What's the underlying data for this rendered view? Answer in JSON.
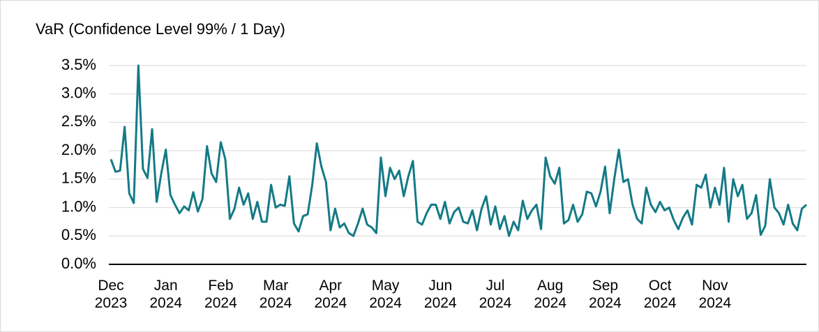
{
  "chart_data": {
    "type": "line",
    "title": "VaR (Confidence Level 99% / 1 Day)",
    "categories": [
      "Dec 2023",
      null,
      null,
      null,
      null,
      null,
      null,
      null,
      null,
      null,
      null,
      null,
      "Jan 2024",
      null,
      null,
      null,
      null,
      null,
      null,
      null,
      null,
      null,
      null,
      null,
      "Feb 2024",
      null,
      null,
      null,
      null,
      null,
      null,
      null,
      null,
      null,
      null,
      null,
      "Mar 2024",
      null,
      null,
      null,
      null,
      null,
      null,
      null,
      null,
      null,
      null,
      null,
      "Apr 2024",
      null,
      null,
      null,
      null,
      null,
      null,
      null,
      null,
      null,
      null,
      null,
      "May 2024",
      null,
      null,
      null,
      null,
      null,
      null,
      null,
      null,
      null,
      null,
      null,
      "Jun 2024",
      null,
      null,
      null,
      null,
      null,
      null,
      null,
      null,
      null,
      null,
      null,
      "Jul 2024",
      null,
      null,
      null,
      null,
      null,
      null,
      null,
      null,
      null,
      null,
      null,
      "Aug 2024",
      null,
      null,
      null,
      null,
      null,
      null,
      null,
      null,
      null,
      null,
      null,
      "Sep 2024",
      null,
      null,
      null,
      null,
      null,
      null,
      null,
      null,
      null,
      null,
      null,
      "Oct 2024",
      null,
      null,
      null,
      null,
      null,
      null,
      null,
      null,
      null,
      null,
      null,
      "Nov 2024",
      null,
      null,
      null,
      null,
      null,
      null,
      null,
      null,
      null,
      null,
      null,
      null,
      null,
      null,
      null,
      null,
      null,
      null,
      null,
      null
    ],
    "values": [
      1.85,
      1.63,
      1.65,
      2.42,
      1.25,
      1.08,
      3.5,
      1.68,
      1.52,
      2.38,
      1.1,
      1.6,
      2.02,
      1.22,
      1.05,
      0.9,
      1.02,
      0.95,
      1.27,
      0.93,
      1.15,
      2.08,
      1.6,
      1.45,
      2.15,
      1.85,
      0.8,
      0.98,
      1.35,
      1.05,
      1.25,
      0.8,
      1.1,
      0.75,
      0.75,
      1.4,
      1.0,
      1.05,
      1.03,
      1.55,
      0.72,
      0.58,
      0.85,
      0.88,
      1.4,
      2.13,
      1.72,
      1.45,
      0.6,
      0.98,
      0.65,
      0.72,
      0.55,
      0.5,
      0.72,
      0.98,
      0.7,
      0.65,
      0.55,
      1.88,
      1.2,
      1.7,
      1.5,
      1.65,
      1.2,
      1.55,
      1.82,
      0.75,
      0.7,
      0.9,
      1.05,
      1.05,
      0.8,
      1.1,
      0.72,
      0.92,
      1.0,
      0.75,
      0.72,
      0.95,
      0.6,
      0.98,
      1.2,
      0.7,
      1.02,
      0.62,
      0.85,
      0.5,
      0.75,
      0.6,
      1.12,
      0.8,
      0.95,
      1.05,
      0.62,
      1.88,
      1.55,
      1.42,
      1.7,
      0.72,
      0.78,
      1.05,
      0.75,
      0.88,
      1.28,
      1.25,
      1.02,
      1.28,
      1.72,
      0.9,
      1.5,
      2.02,
      1.45,
      1.5,
      1.05,
      0.8,
      0.72,
      1.35,
      1.05,
      0.92,
      1.1,
      0.95,
      1.0,
      0.78,
      0.62,
      0.82,
      0.95,
      0.7,
      1.4,
      1.35,
      1.58,
      1.0,
      1.35,
      1.05,
      1.7,
      0.75,
      1.5,
      1.2,
      1.4,
      0.8,
      0.9,
      1.22,
      0.52,
      0.68,
      1.5,
      1.0,
      0.9,
      0.7,
      1.05,
      0.72,
      0.6,
      0.98,
      1.05
    ],
    "color": "#137a86",
    "ylim": [
      0,
      3.5
    ],
    "yticks": [
      {
        "value": 0,
        "label": "0.0%"
      },
      {
        "value": 0.5,
        "label": "0.5%"
      },
      {
        "value": 1,
        "label": "1.0%"
      },
      {
        "value": 1.5,
        "label": "1.5%"
      },
      {
        "value": 2,
        "label": "2.0%"
      },
      {
        "value": 2.5,
        "label": "2.5%"
      },
      {
        "value": 3,
        "label": "3.0%"
      },
      {
        "value": 3.5,
        "label": "3.5%"
      }
    ],
    "grid": true
  }
}
